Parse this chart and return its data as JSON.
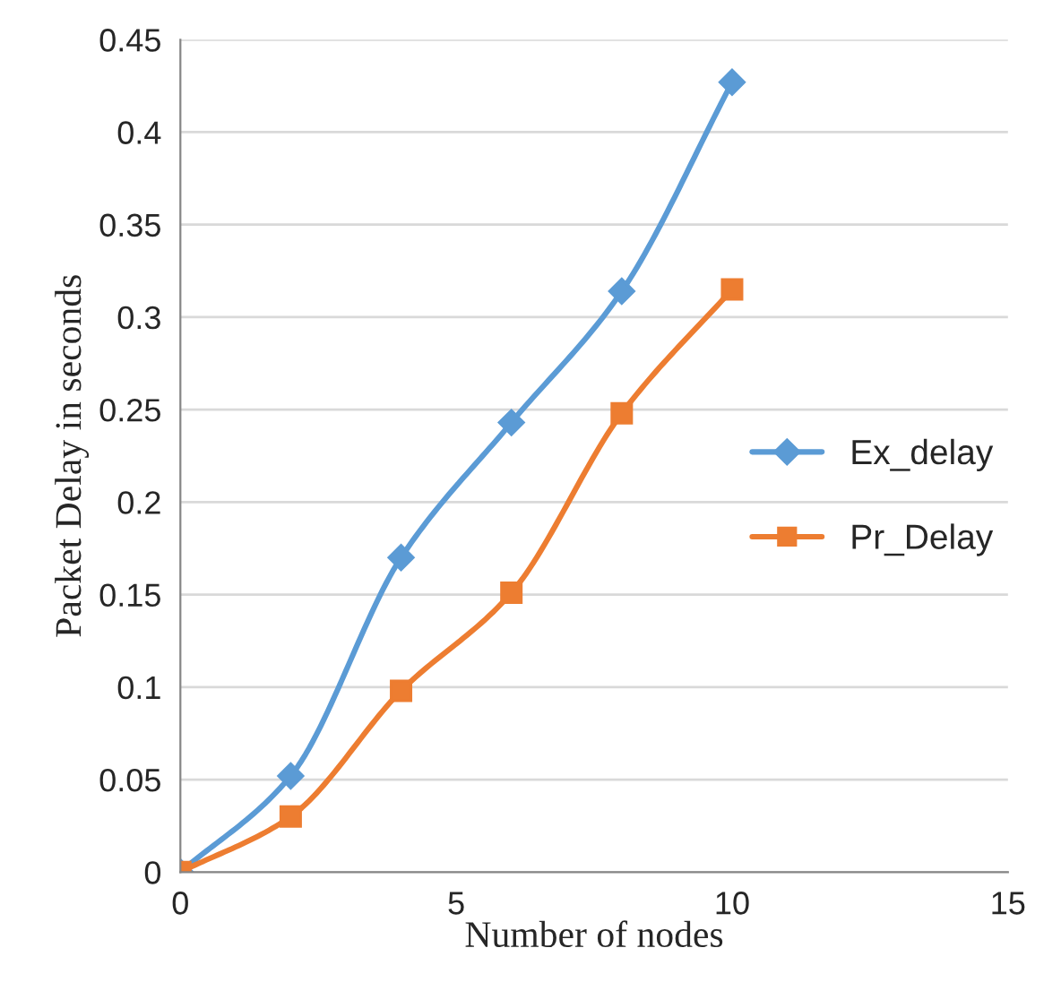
{
  "chart_data": {
    "type": "line",
    "xlabel": "Number of nodes",
    "ylabel": "Packet Delay in seconds",
    "series": [
      {
        "name": "Ex_delay",
        "color": "#5b9bd5",
        "marker": "diamond",
        "x": [
          0,
          2,
          4,
          6,
          8,
          10
        ],
        "values": [
          0,
          0.052,
          0.17,
          0.243,
          0.314,
          0.427
        ]
      },
      {
        "name": "Pr_Delay",
        "color": "#ed7d31",
        "marker": "square",
        "x": [
          0,
          2,
          4,
          6,
          8,
          10
        ],
        "values": [
          0,
          0.03,
          0.098,
          0.151,
          0.248,
          0.315
        ]
      }
    ],
    "xlim": [
      0,
      15
    ],
    "xticks": [
      0,
      5,
      10,
      15
    ],
    "ylim": [
      0,
      0.45
    ],
    "yticks": [
      0,
      0.05,
      0.1,
      0.15,
      0.2,
      0.25,
      0.3,
      0.35,
      0.4,
      0.45
    ],
    "grid": "y",
    "legend": "right",
    "line_style": "solid"
  }
}
